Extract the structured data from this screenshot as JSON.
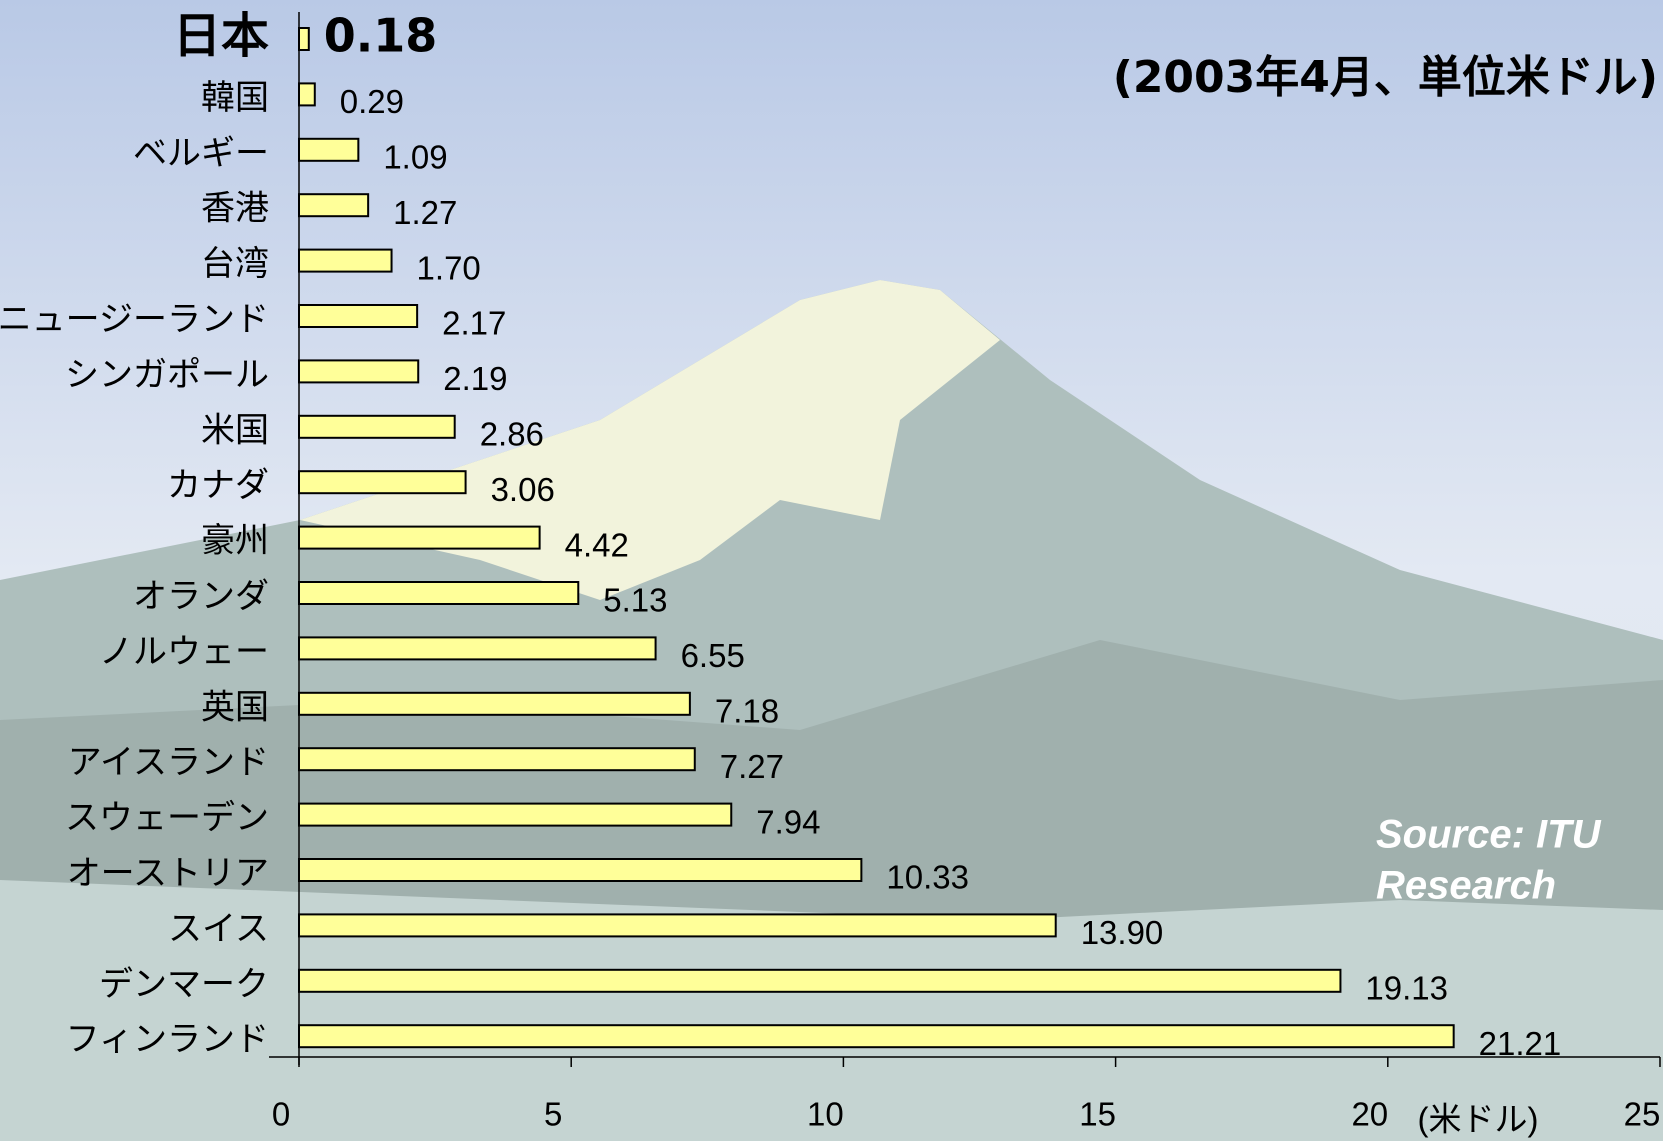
{
  "chart_data": {
    "type": "bar",
    "orientation": "horizontal",
    "title": "(2003年4月、単位米ドル)",
    "x_label": "(米ドル)",
    "source_lines": [
      "Source: ITU",
      "Research"
    ],
    "categories": [
      "日本",
      "韓国",
      "ベルギー",
      "香港",
      "台湾",
      "ニュージーランド",
      "シンガポール",
      "米国",
      "カナダ",
      "豪州",
      "オランダ",
      "ノルウェー",
      "英国",
      "アイスランド",
      "スウェーデン",
      "オーストリア",
      "スイス",
      "デンマーク",
      "フィンランド"
    ],
    "values": [
      0.18,
      0.29,
      1.09,
      1.27,
      1.7,
      2.17,
      2.19,
      2.86,
      3.06,
      4.42,
      5.13,
      6.55,
      7.18,
      7.27,
      7.94,
      10.33,
      13.9,
      19.13,
      21.21
    ],
    "value_labels": [
      "0.18",
      "0.29",
      "1.09",
      "1.27",
      "1.70",
      "2.17",
      "2.19",
      "2.86",
      "3.06",
      "4.42",
      "5.13",
      "6.55",
      "7.18",
      "7.27",
      "7.94",
      "10.33",
      "13.90",
      "19.13",
      "21.21"
    ],
    "color": "#ffff99",
    "xlim": [
      0,
      25
    ],
    "xticks": [
      0,
      5,
      10,
      15,
      20,
      25
    ]
  }
}
